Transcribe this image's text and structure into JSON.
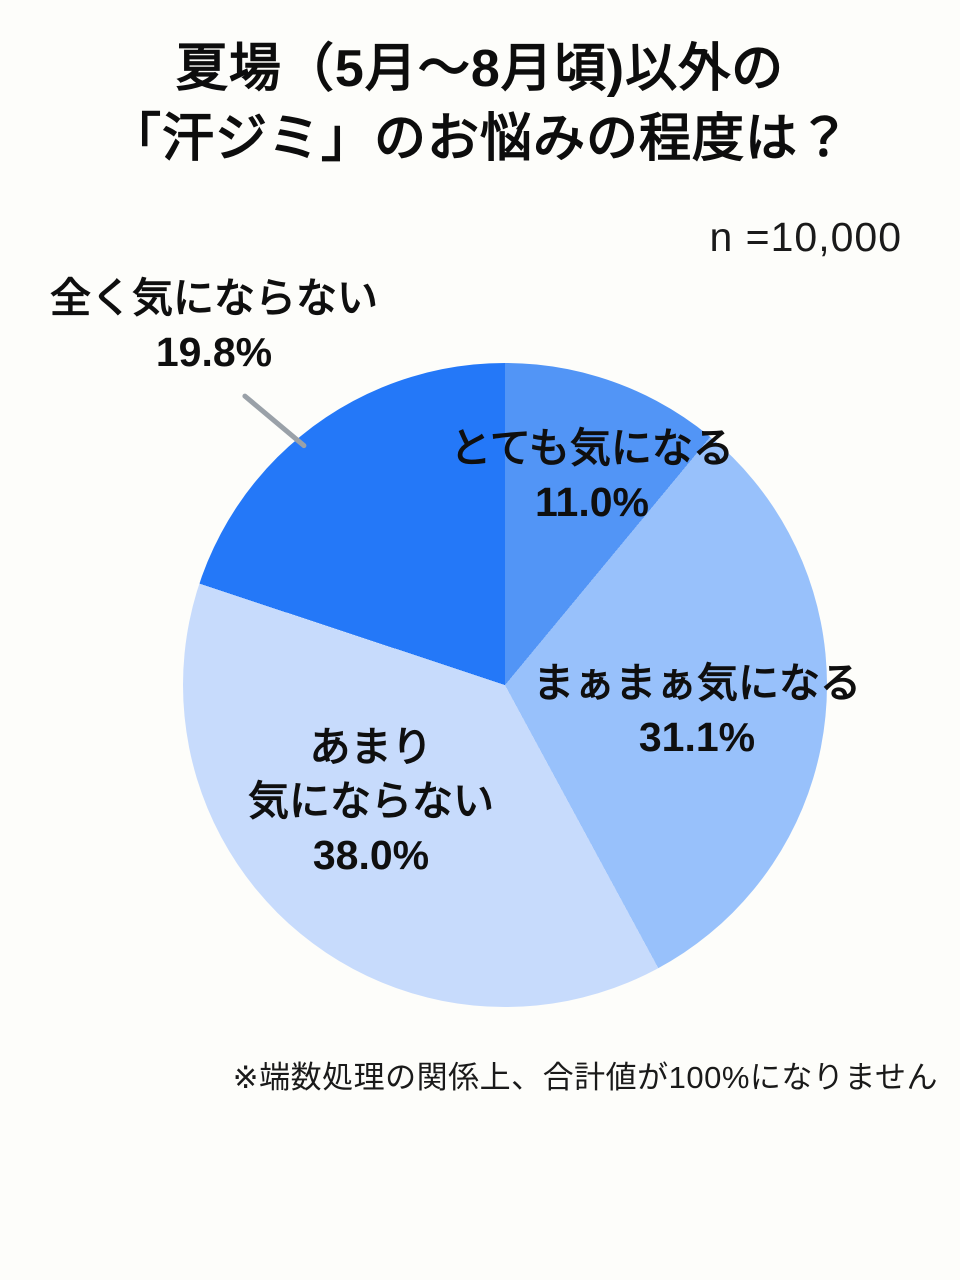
{
  "title": {
    "line1": "夏場（5月〜8月頃)以外の",
    "line2": "「汗ジミ」のお悩みの程度は？"
  },
  "sample_size_label": "n =10,000",
  "footnote": "※端数処理の関係上、合計値が100%になりません",
  "chart_data": {
    "type": "pie",
    "title": "夏場（5月〜8月頃)以外の「汗ジミ」のお悩みの程度は？",
    "sample_size": 10000,
    "start_angle_deg": 0,
    "direction": "clockwise",
    "legend_position": "labels-on-chart",
    "slices": [
      {
        "label": "とても気になる",
        "display": "11.0%",
        "value": 11.0,
        "color": "#5295f6"
      },
      {
        "label": "まぁまぁ気になる",
        "display": "31.1%",
        "value": 31.1,
        "color": "#98c1fb"
      },
      {
        "label": "あまり気にならない",
        "label_lines": [
          "あまり",
          "気にならない"
        ],
        "display": "38.0%",
        "value": 38.0,
        "color": "#c7dbfc"
      },
      {
        "label": "全く気にならない",
        "display": "19.8%",
        "value": 19.8,
        "color": "#2478f8"
      }
    ],
    "note": "※端数処理の関係上、合計値が100%になりません"
  },
  "colors": {
    "background": "#fdfdfa",
    "text": "#0d0d0d",
    "leader_line": "#9aa1a8"
  }
}
